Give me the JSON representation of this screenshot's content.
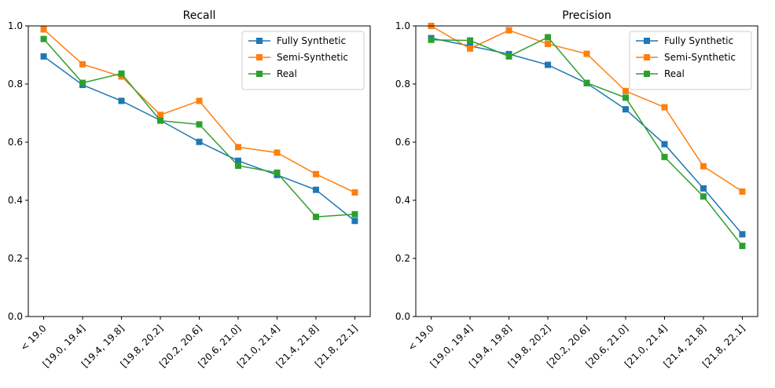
{
  "chart_data": [
    {
      "type": "line",
      "title": "Recall",
      "xlabel": "",
      "ylabel": "",
      "ylim": [
        0,
        1
      ],
      "yticks": [
        "0.0",
        "0.2",
        "0.4",
        "0.6",
        "0.8",
        "1.0"
      ],
      "categories": [
        "< 19.0",
        "[19.0, 19.4]",
        "[19.4, 19.8]",
        "[19.8, 20.2]",
        "[20.2, 20.6]",
        "[20.6, 21.0]",
        "[21.0, 21.4]",
        "[21.4, 21.8]",
        "[21.8, 22.1]"
      ],
      "legend_position": "upper right",
      "series": [
        {
          "name": "Fully Synthetic",
          "color": "#1f77b4",
          "marker": "square",
          "values": [
            0.895,
            0.797,
            0.742,
            0.675,
            0.601,
            0.536,
            0.487,
            0.436,
            0.329
          ]
        },
        {
          "name": "Semi-Synthetic",
          "color": "#ff7f0e",
          "marker": "square",
          "values": [
            0.988,
            0.868,
            0.826,
            0.694,
            0.742,
            0.583,
            0.564,
            0.49,
            0.427
          ]
        },
        {
          "name": "Real",
          "color": "#2ca02c",
          "marker": "square",
          "values": [
            0.955,
            0.804,
            0.836,
            0.674,
            0.661,
            0.519,
            0.495,
            0.343,
            0.352
          ]
        }
      ]
    },
    {
      "type": "line",
      "title": "Precision",
      "xlabel": "",
      "ylabel": "",
      "ylim": [
        0,
        1
      ],
      "yticks": [
        "0.0",
        "0.2",
        "0.4",
        "0.6",
        "0.8",
        "1.0"
      ],
      "categories": [
        "< 19.0",
        "[19.0, 19.4]",
        "[19.4, 19.8]",
        "[19.8, 20.2]",
        "[20.2, 20.6]",
        "[20.6, 21.0]",
        "[21.0, 21.4]",
        "[21.4, 21.8]",
        "[21.8, 22.1]"
      ],
      "legend_position": "upper right",
      "series": [
        {
          "name": "Fully Synthetic",
          "color": "#1f77b4",
          "marker": "square",
          "values": [
            0.958,
            0.931,
            0.903,
            0.866,
            0.803,
            0.713,
            0.593,
            0.441,
            0.283
          ]
        },
        {
          "name": "Semi-Synthetic",
          "color": "#ff7f0e",
          "marker": "square",
          "values": [
            1.0,
            0.922,
            0.985,
            0.938,
            0.904,
            0.776,
            0.72,
            0.517,
            0.43
          ]
        },
        {
          "name": "Real",
          "color": "#2ca02c",
          "marker": "square",
          "values": [
            0.952,
            0.95,
            0.895,
            0.961,
            0.804,
            0.753,
            0.549,
            0.413,
            0.243
          ]
        }
      ]
    }
  ]
}
